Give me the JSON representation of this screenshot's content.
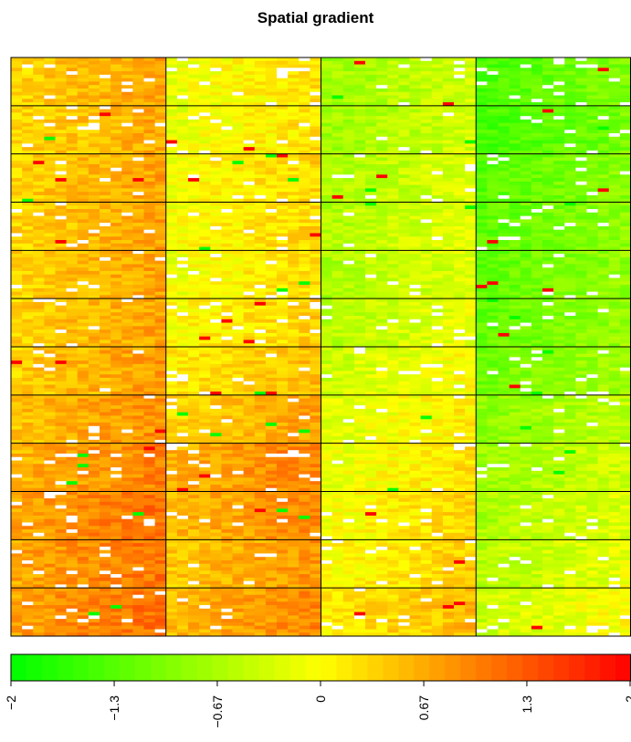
{
  "chart_data": {
    "type": "heatmap",
    "title": "Spatial gradient",
    "xlabel": "",
    "ylabel": "",
    "panels": {
      "columns": 4,
      "rows": 12
    },
    "gradient": {
      "description_values": "Per-panel mean value; rows top to bottom, columns left to right",
      "panel_means": [
        [
          0.55,
          0.05,
          -0.55,
          -1.2
        ],
        [
          0.5,
          0.05,
          -0.55,
          -1.25
        ],
        [
          0.55,
          0.15,
          -0.45,
          -1.1
        ],
        [
          0.55,
          0.15,
          -0.4,
          -1.05
        ],
        [
          0.55,
          0.1,
          -0.45,
          -1.05
        ],
        [
          0.55,
          0.2,
          -0.35,
          -1.0
        ],
        [
          0.6,
          0.35,
          -0.2,
          -0.9
        ],
        [
          0.7,
          0.55,
          -0.05,
          -0.7
        ],
        [
          0.8,
          0.8,
          0.05,
          -0.55
        ],
        [
          0.95,
          0.75,
          0.15,
          -0.45
        ],
        [
          0.9,
          0.65,
          0.2,
          -0.35
        ],
        [
          0.95,
          0.75,
          0.35,
          -0.2
        ]
      ],
      "missing_cells": "white",
      "outlier_colors": [
        "red",
        "green"
      ]
    },
    "colorbar": {
      "min": -2,
      "max": 2,
      "tick_labels": [
        "−2",
        "−1.3",
        "−0.67",
        "0",
        "0.67",
        "1.3",
        "2"
      ],
      "tick_values": [
        -2,
        -1.333,
        -0.667,
        0,
        0.667,
        1.333,
        2
      ],
      "low_color": "#00ff00",
      "mid_color": "#ffff00",
      "high_color": "#ff0000"
    }
  }
}
